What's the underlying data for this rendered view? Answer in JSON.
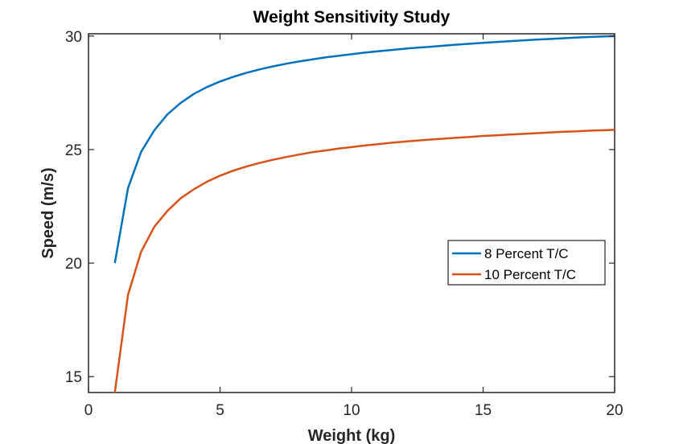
{
  "chart_data": {
    "type": "line",
    "title": "Weight Sensitivity Study",
    "xlabel": "Weight (kg)",
    "ylabel": "Speed (m/s)",
    "xlim": [
      0,
      20
    ],
    "ylim": [
      14.3,
      30.1
    ],
    "xticks": [
      0,
      5,
      10,
      15,
      20
    ],
    "yticks": [
      15,
      20,
      25,
      30
    ],
    "grid": false,
    "legend_position": "center-right",
    "x": [
      1,
      1.5,
      2,
      2.5,
      3,
      3.5,
      4,
      4.5,
      5,
      5.5,
      6,
      6.5,
      7,
      7.5,
      8,
      8.5,
      9,
      9.5,
      10,
      10.5,
      11,
      11.5,
      12,
      12.5,
      13,
      13.5,
      14,
      14.5,
      15,
      15.5,
      16,
      16.5,
      17,
      17.5,
      18,
      18.5,
      19,
      19.5,
      20
    ],
    "series": [
      {
        "name": "8 Percent T/C",
        "color": "#0072BD",
        "values": [
          20.0,
          23.3,
          24.9,
          25.85,
          26.55,
          27.05,
          27.45,
          27.75,
          28.0,
          28.2,
          28.38,
          28.53,
          28.66,
          28.78,
          28.88,
          28.97,
          29.06,
          29.13,
          29.2,
          29.27,
          29.33,
          29.38,
          29.44,
          29.49,
          29.53,
          29.58,
          29.62,
          29.66,
          29.7,
          29.74,
          29.77,
          29.81,
          29.84,
          29.87,
          29.9,
          29.93,
          29.96,
          29.98,
          30.0
        ]
      },
      {
        "name": "10 Percent T/C",
        "color": "#D95319",
        "values": [
          14.3,
          18.6,
          20.5,
          21.6,
          22.3,
          22.85,
          23.25,
          23.58,
          23.85,
          24.07,
          24.25,
          24.41,
          24.55,
          24.67,
          24.78,
          24.88,
          24.96,
          25.04,
          25.11,
          25.18,
          25.24,
          25.3,
          25.35,
          25.4,
          25.44,
          25.48,
          25.52,
          25.56,
          25.6,
          25.63,
          25.66,
          25.69,
          25.72,
          25.75,
          25.78,
          25.8,
          25.83,
          25.85,
          25.87
        ]
      }
    ]
  }
}
